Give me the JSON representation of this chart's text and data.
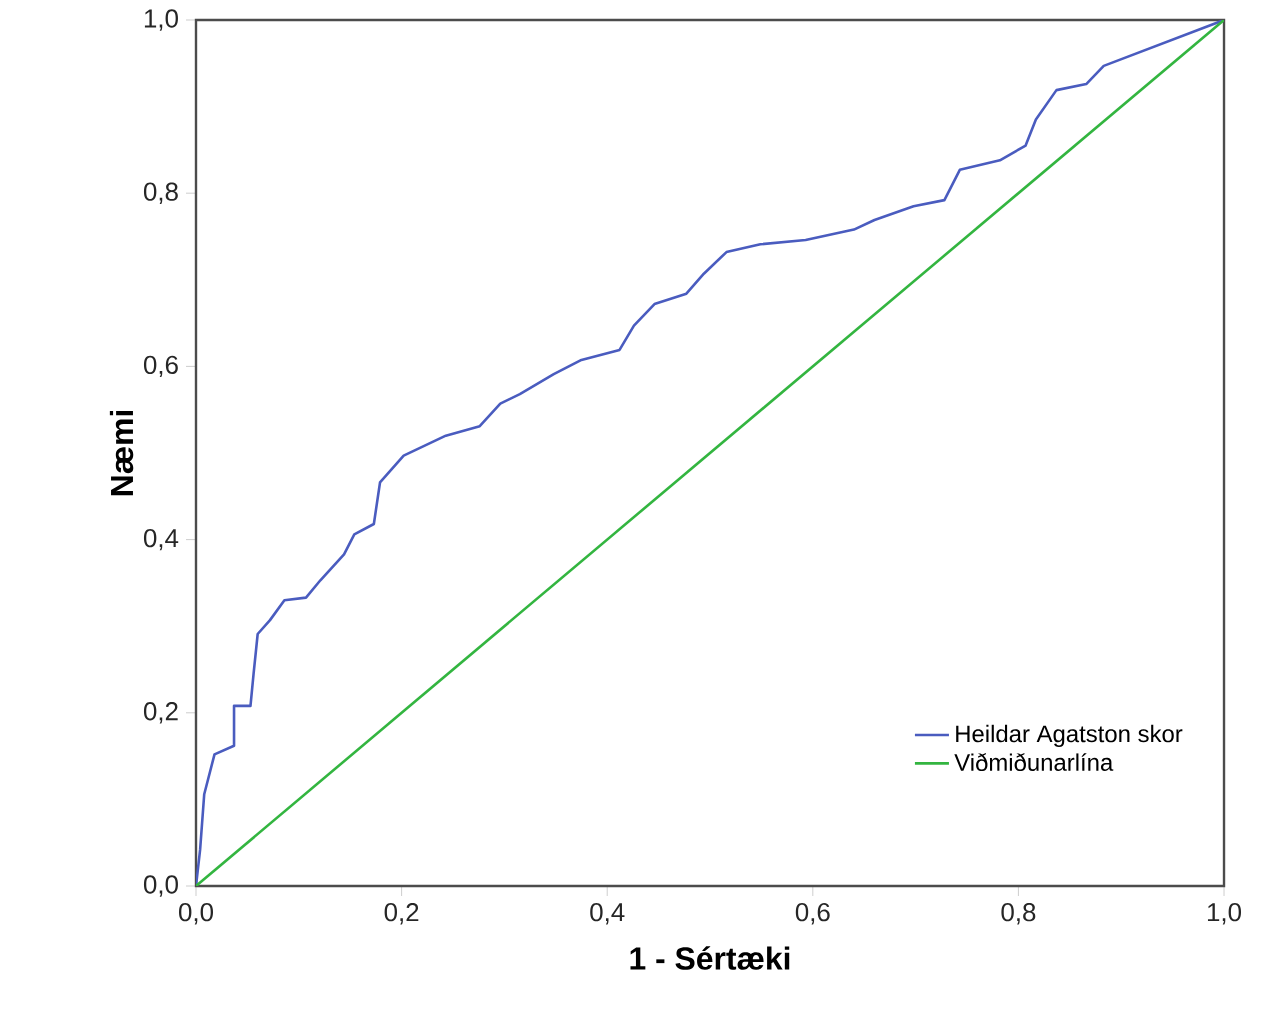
{
  "chart_data": {
    "type": "line",
    "xlabel": "1 - Sértæki",
    "ylabel": "Næmi",
    "xlim": [
      0,
      1
    ],
    "ylim": [
      0,
      1
    ],
    "xticks": [
      {
        "value": 0,
        "label": "0,0"
      },
      {
        "value": 0.2,
        "label": "0,2"
      },
      {
        "value": 0.4,
        "label": "0,4"
      },
      {
        "value": 0.6,
        "label": "0,6"
      },
      {
        "value": 0.8,
        "label": "0,8"
      },
      {
        "value": 1,
        "label": "1,0"
      }
    ],
    "yticks": [
      {
        "value": 0,
        "label": "0,0"
      },
      {
        "value": 0.2,
        "label": "0,2"
      },
      {
        "value": 0.4,
        "label": "0,4"
      },
      {
        "value": 0.6,
        "label": "0,6"
      },
      {
        "value": 0.8,
        "label": "0,8"
      },
      {
        "value": 1,
        "label": "1,0"
      }
    ],
    "legend": "bottom right",
    "marker": "none",
    "line_style": "solid",
    "grid": false,
    "series": [
      {
        "name": "Heildar Agatston skor",
        "color": "#4a5cbf",
        "x": [
          0,
          0.004,
          0.008,
          0.018,
          0.037,
          0.037,
          0.053,
          0.056,
          0.06,
          0.072,
          0.086,
          0.107,
          0.121,
          0.144,
          0.154,
          0.173,
          0.179,
          0.202,
          0.243,
          0.276,
          0.296,
          0.315,
          0.348,
          0.374,
          0.412,
          0.426,
          0.446,
          0.477,
          0.494,
          0.516,
          0.549,
          0.593,
          0.64,
          0.66,
          0.698,
          0.728,
          0.743,
          0.782,
          0.807,
          0.817,
          0.837,
          0.866,
          0.883,
          1
        ],
        "values": [
          0,
          0.042,
          0.106,
          0.152,
          0.162,
          0.208,
          0.208,
          0.245,
          0.291,
          0.307,
          0.33,
          0.333,
          0.353,
          0.383,
          0.406,
          0.418,
          0.466,
          0.497,
          0.52,
          0.531,
          0.557,
          0.568,
          0.591,
          0.607,
          0.619,
          0.647,
          0.672,
          0.684,
          0.707,
          0.732,
          0.741,
          0.746,
          0.758,
          0.769,
          0.785,
          0.792,
          0.827,
          0.838,
          0.855,
          0.885,
          0.919,
          0.926,
          0.947,
          1
        ]
      },
      {
        "name": "Viðmiðunarlína",
        "color": "#33b540",
        "x": [
          0,
          1
        ],
        "values": [
          0,
          1
        ]
      }
    ]
  }
}
